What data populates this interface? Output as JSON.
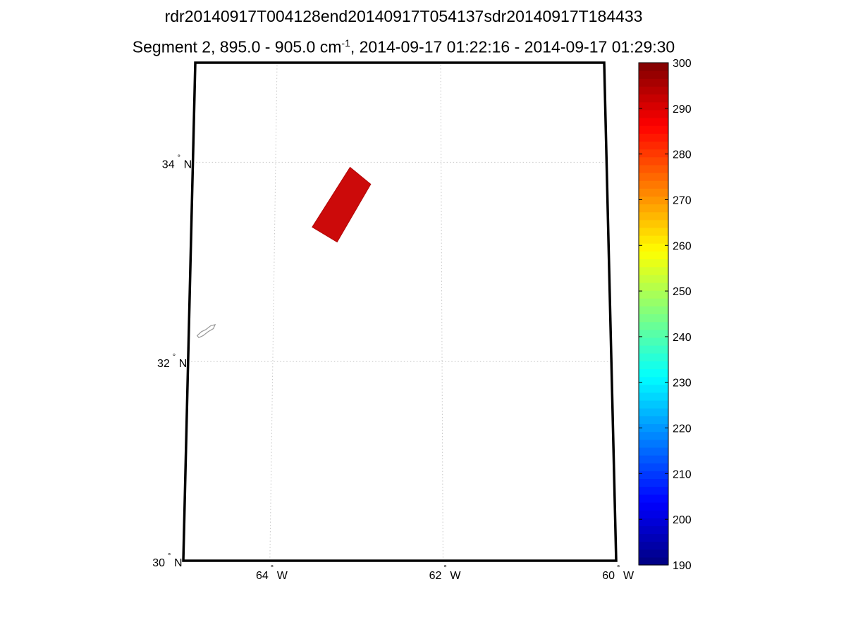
{
  "title": "rdr20140917T004128end20140917T054137sdr20140917T184433",
  "subtitle": {
    "prefix": "Segment 2, 895.0 - 905.0 cm",
    "exponent": "-1",
    "suffix": ", 2014-09-17 01:22:16 - 2014-09-17 01:29:30"
  },
  "map": {
    "lon_range": [
      -65,
      -60
    ],
    "lat_range": [
      30,
      35
    ],
    "grid": true,
    "lat_ticks": [
      {
        "value": 34,
        "label": "34",
        "hemi": "N"
      },
      {
        "value": 32,
        "label": "32",
        "hemi": "N"
      },
      {
        "value": 30,
        "label": "30",
        "hemi": "N"
      }
    ],
    "lon_ticks": [
      {
        "value": -64,
        "label": "64",
        "hemi": "W"
      },
      {
        "value": -62,
        "label": "62",
        "hemi": "W"
      },
      {
        "value": -60,
        "label": "60",
        "hemi": "W"
      }
    ],
    "swath": {
      "color": "#cc0a0a",
      "value": 292,
      "corners": [
        [
          -63.1,
          33.95
        ],
        [
          -62.85,
          33.78
        ],
        [
          -63.25,
          33.2
        ],
        [
          -63.55,
          33.35
        ]
      ]
    },
    "coastline": {
      "name": "Bermuda",
      "color": "#999999",
      "points": [
        [
          -64.9,
          32.26
        ],
        [
          -64.85,
          32.3
        ],
        [
          -64.8,
          32.32
        ],
        [
          -64.74,
          32.36
        ],
        [
          -64.69,
          32.37
        ],
        [
          -64.71,
          32.33
        ],
        [
          -64.77,
          32.3
        ],
        [
          -64.83,
          32.26
        ],
        [
          -64.88,
          32.24
        ]
      ]
    }
  },
  "colorbar": {
    "colormap": "jet",
    "min": 190,
    "max": 300,
    "ticks": [
      "300",
      "290",
      "280",
      "270",
      "260",
      "250",
      "240",
      "230",
      "220",
      "210",
      "200",
      "190"
    ]
  }
}
